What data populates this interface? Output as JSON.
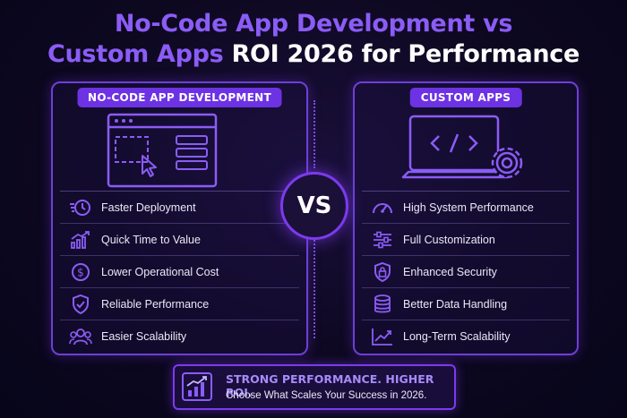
{
  "title": {
    "line1": "No-Code App Development vs",
    "line2_part1": "Custom Apps",
    "line2_part2": "ROI 2026 for Performance"
  },
  "left_panel": {
    "badge": "NO-CODE APP DEVELOPMENT",
    "items": [
      {
        "icon": "clock-fast-icon",
        "label": "Faster Deployment"
      },
      {
        "icon": "growth-chart-icon",
        "label": "Quick Time to Value"
      },
      {
        "icon": "dollar-coin-icon",
        "label": "Lower Operational Cost"
      },
      {
        "icon": "shield-check-icon",
        "label": "Reliable Performance"
      },
      {
        "icon": "users-icon",
        "label": "Easier Scalability"
      }
    ]
  },
  "vs_label": "VS",
  "right_panel": {
    "badge": "CUSTOM APPS",
    "items": [
      {
        "icon": "speedometer-icon",
        "label": "High System Performance"
      },
      {
        "icon": "sliders-icon",
        "label": "Full Customization"
      },
      {
        "icon": "lock-shield-icon",
        "label": "Enhanced Security"
      },
      {
        "icon": "database-icon",
        "label": "Better Data Handling"
      },
      {
        "icon": "trend-line-icon",
        "label": "Long-Term Scalability"
      }
    ]
  },
  "banner": {
    "headline": "STRONG PERFORMANCE. HIGHER ROI.",
    "subtext": "Choose What Scales Your Success in 2026."
  },
  "colors": {
    "accent": "#8b5cf6",
    "badge": "#6d32e3",
    "background": "#0d0820"
  }
}
